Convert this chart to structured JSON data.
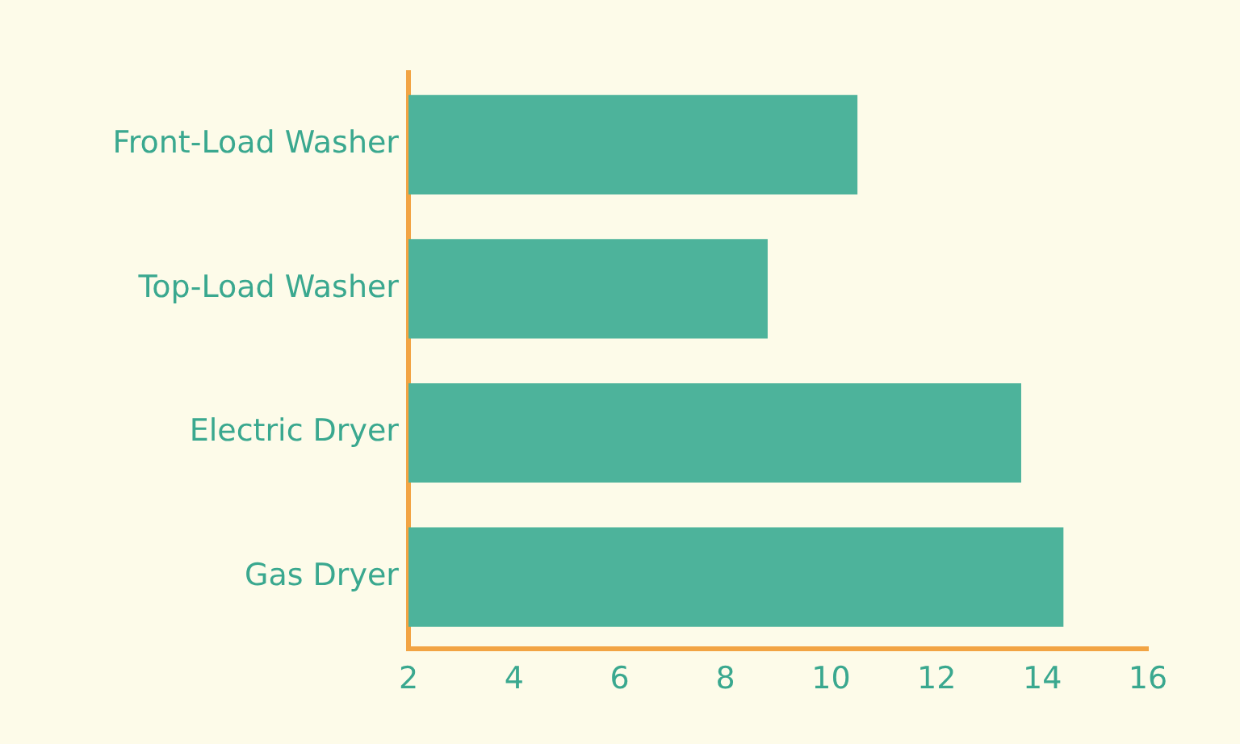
{
  "chart_data": {
    "type": "bar",
    "orientation": "horizontal",
    "categories": [
      "Front-Load Washer",
      "Top-Load Washer",
      "Electric Dryer",
      "Gas Dryer"
    ],
    "values": [
      10.5,
      8.8,
      13.6,
      14.4
    ],
    "color": "#4db39b",
    "xlim": [
      2,
      16
    ],
    "xticks": [
      2,
      4,
      6,
      8,
      10,
      12,
      14,
      16
    ],
    "grid": false,
    "legend": false
  }
}
